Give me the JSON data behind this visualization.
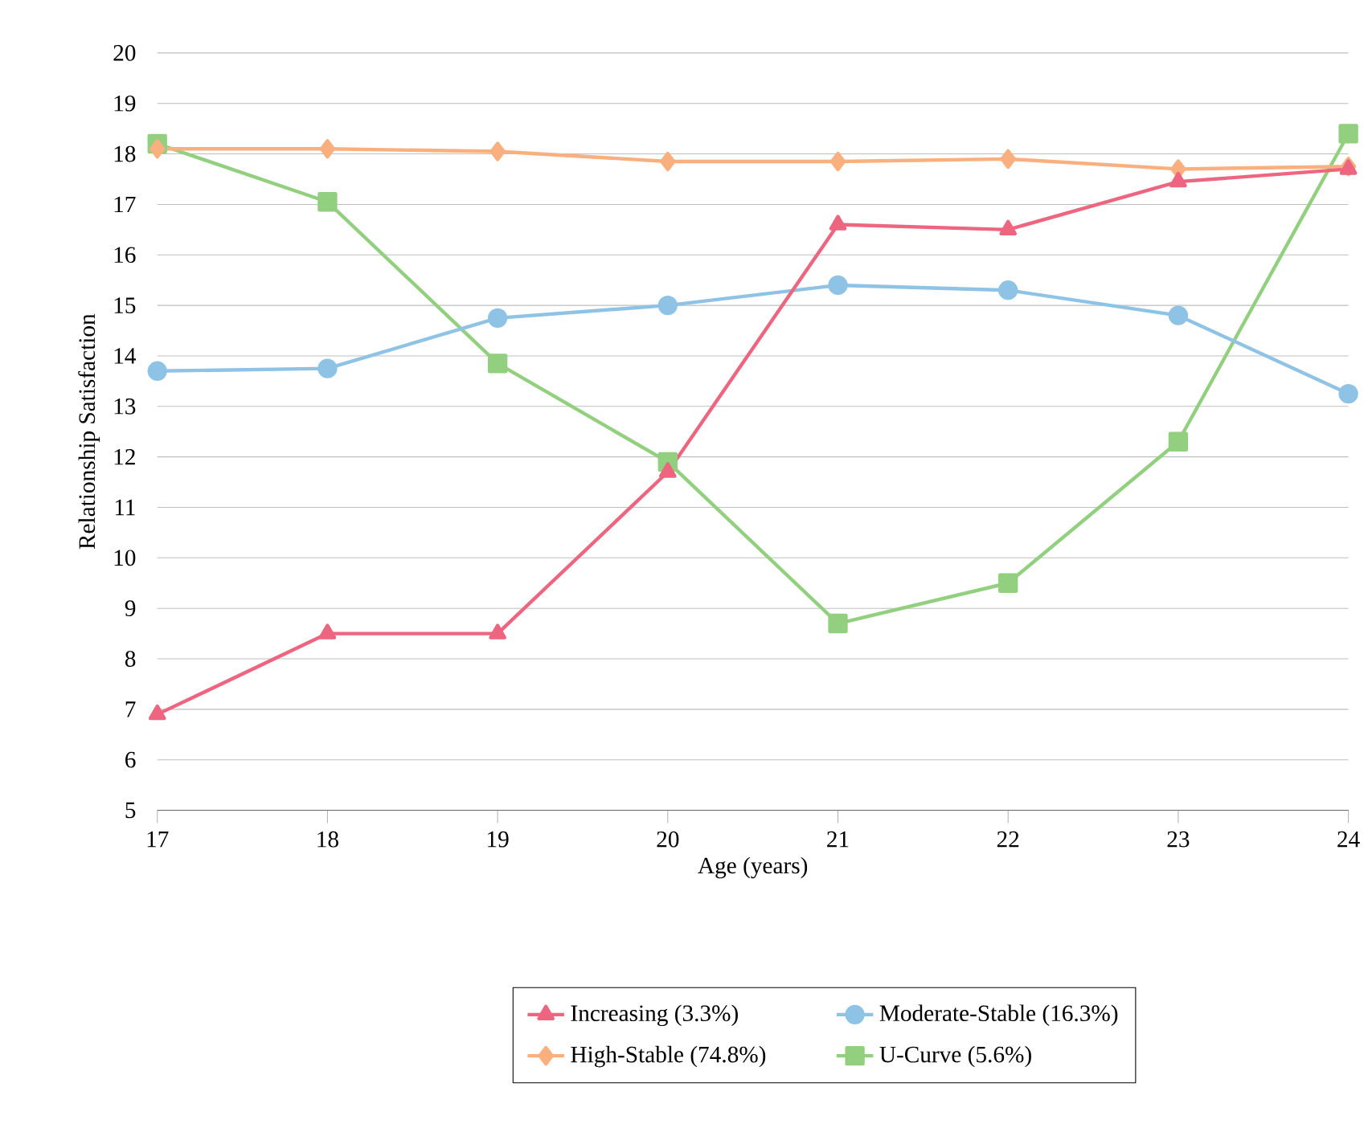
{
  "chart_data": {
    "type": "line",
    "xlabel": "Age (years)",
    "ylabel": "Relationship Satisfaction",
    "x": [
      17,
      18,
      19,
      20,
      21,
      22,
      23,
      24
    ],
    "series": [
      {
        "name": "Increasing (3.3%)",
        "color": "#ee6580",
        "marker": "triangle",
        "values": [
          6.9,
          8.5,
          8.5,
          11.7,
          16.6,
          16.5,
          17.45,
          17.7
        ]
      },
      {
        "name": "Moderate-Stable (16.3%)",
        "color": "#8ec3e6",
        "marker": "circle",
        "values": [
          13.7,
          13.75,
          14.75,
          15.0,
          15.4,
          15.3,
          14.8,
          13.25
        ]
      },
      {
        "name": "High-Stable (74.8%)",
        "color": "#f9b07e",
        "marker": "diamond",
        "values": [
          18.1,
          18.1,
          18.05,
          17.85,
          17.85,
          17.9,
          17.7,
          17.75
        ]
      },
      {
        "name": "U-Curve (5.6%)",
        "color": "#92d080",
        "marker": "square",
        "values": [
          18.2,
          17.05,
          13.85,
          11.9,
          8.7,
          9.5,
          12.3,
          18.4
        ]
      }
    ],
    "xlim": [
      17,
      24
    ],
    "xticks": [
      17,
      18,
      19,
      20,
      21,
      22,
      23,
      24
    ],
    "ylim": [
      5,
      20
    ],
    "yticks": [
      5,
      6,
      7,
      8,
      9,
      10,
      11,
      12,
      13,
      14,
      15,
      16,
      17,
      18,
      19,
      20
    ],
    "grid": "y",
    "legend": "bottom",
    "line_style": "solid"
  }
}
